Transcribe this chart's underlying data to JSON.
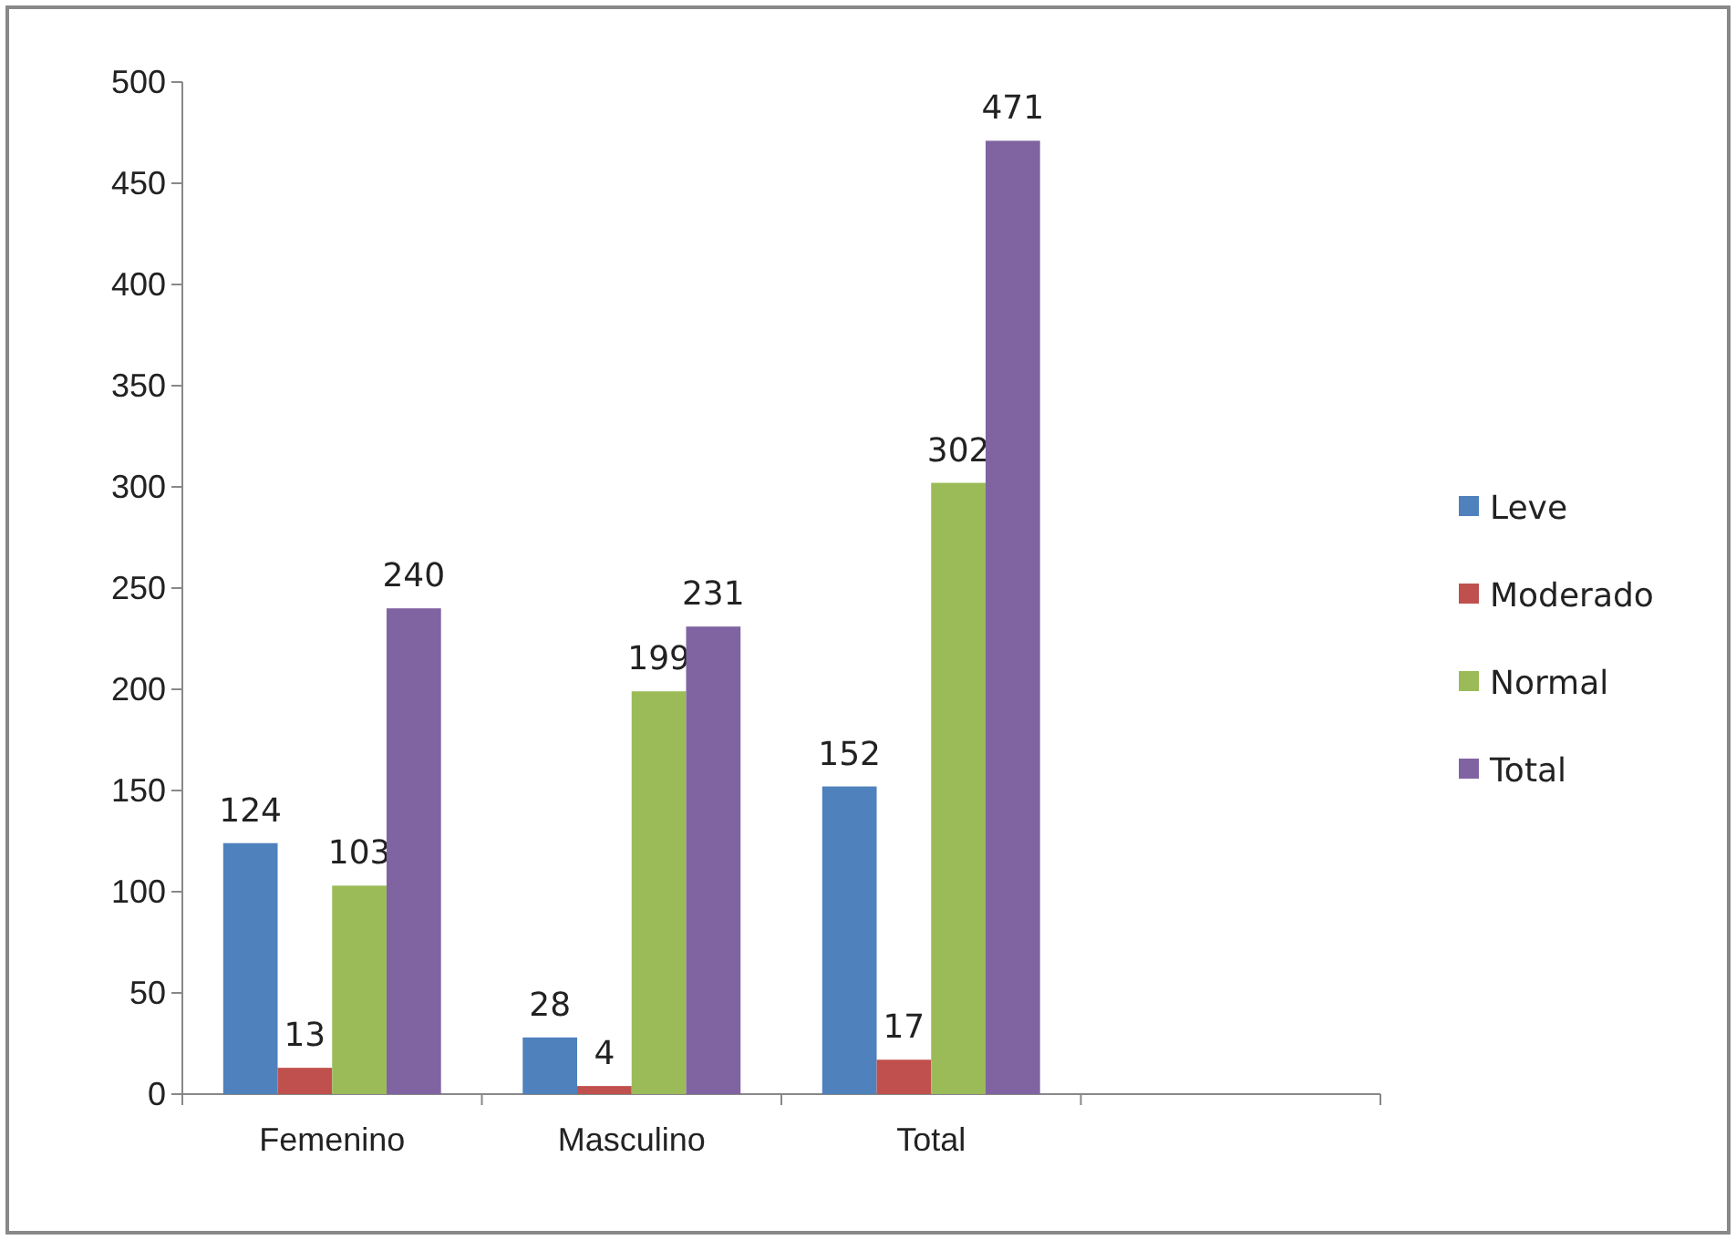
{
  "chart_data": {
    "type": "bar",
    "categories": [
      "Femenino",
      "Masculino",
      "Total",
      null
    ],
    "series": [
      {
        "name": "Leve",
        "color": "#4f81bd",
        "values": [
          124,
          28,
          152,
          null
        ]
      },
      {
        "name": "Moderado",
        "color": "#c0504d",
        "values": [
          13,
          4,
          17,
          null
        ]
      },
      {
        "name": "Normal",
        "color": "#9bbb59",
        "values": [
          103,
          199,
          302,
          null
        ]
      },
      {
        "name": "Total",
        "color": "#8064a2",
        "values": [
          240,
          231,
          471,
          null
        ]
      }
    ],
    "ylim": [
      0,
      500
    ],
    "yticks": [
      0,
      50,
      100,
      150,
      200,
      250,
      300,
      350,
      400,
      450,
      500
    ],
    "data_labels": true,
    "legend": "right",
    "grid": false
  }
}
